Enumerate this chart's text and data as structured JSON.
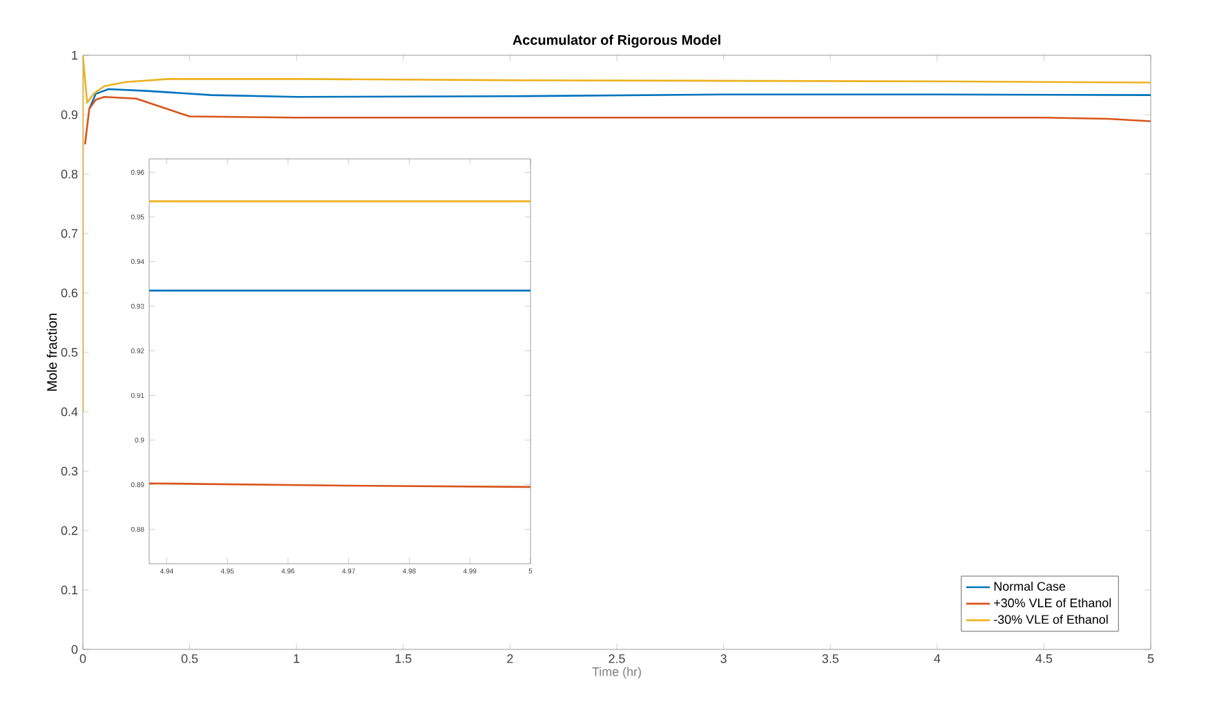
{
  "chart_data": [
    {
      "type": "line",
      "title": "Accumulator of Rigorous Model",
      "xlabel": "Time (hr)",
      "ylabel": "Mole fraction",
      "xlim": [
        0,
        5
      ],
      "ylim": [
        0,
        1
      ],
      "xticks": [
        0,
        0.5,
        1,
        1.5,
        2,
        2.5,
        3,
        3.5,
        4,
        4.5,
        5
      ],
      "yticks": [
        0,
        0.1,
        0.2,
        0.3,
        0.4,
        0.5,
        0.6,
        0.7,
        0.8,
        0.9,
        1
      ],
      "legend": "bottom right",
      "grid": false,
      "series": [
        {
          "name": "Normal Case",
          "color": "#0072bd",
          "x": [
            0.03,
            0.06,
            0.12,
            0.3,
            0.6,
            1,
            2,
            3,
            4,
            5
          ],
          "values": [
            0.91,
            0.935,
            0.943,
            0.94,
            0.933,
            0.93,
            0.931,
            0.934,
            0.934,
            0.933
          ]
        },
        {
          "name": "+30% VLE of Ethanol",
          "color": "#d95319",
          "x": [
            0.01,
            0.03,
            0.06,
            0.1,
            0.25,
            0.35,
            0.45,
            0.5,
            1,
            3,
            4.5,
            4.8,
            5
          ],
          "values": [
            0.85,
            0.91,
            0.925,
            0.93,
            0.927,
            0.915,
            0.903,
            0.897,
            0.895,
            0.895,
            0.895,
            0.893,
            0.889
          ]
        },
        {
          "name": "-30% VLE of Ethanol",
          "color": "#edb120",
          "x": [
            0,
            0,
            0.02,
            0.05,
            0.1,
            0.2,
            0.4,
            1,
            2,
            3,
            4,
            5
          ],
          "values": [
            0.4,
            1,
            0.92,
            0.935,
            0.948,
            0.955,
            0.96,
            0.96,
            0.958,
            0.957,
            0.956,
            0.954
          ]
        }
      ]
    },
    {
      "type": "line",
      "xlim": [
        4.9371,
        5
      ],
      "ylim": [
        0.8723,
        0.963
      ],
      "xticks": [
        4.94,
        4.95,
        4.96,
        4.97,
        4.98,
        4.99,
        5
      ],
      "yticks": [
        0.88,
        0.89,
        0.9,
        0.91,
        0.92,
        0.93,
        0.94,
        0.95,
        0.96
      ],
      "grid": false,
      "series": [
        {
          "color": "#0072bd",
          "x": [
            4.9371,
            5
          ],
          "values": [
            0.9335,
            0.9335
          ]
        },
        {
          "color": "#d95319",
          "x": [
            4.9371,
            4.97,
            5
          ],
          "values": [
            0.8903,
            0.8898,
            0.8895
          ]
        },
        {
          "color": "#edb120",
          "x": [
            4.9371,
            5
          ],
          "values": [
            0.9535,
            0.9535
          ]
        }
      ]
    }
  ]
}
